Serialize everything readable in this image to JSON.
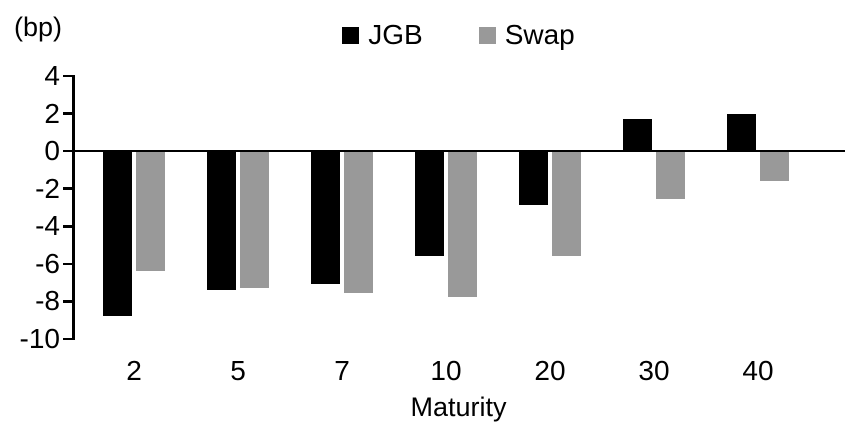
{
  "unit_label": "(bp)",
  "chart_data": {
    "type": "bar",
    "categories": [
      "2",
      "5",
      "7",
      "10",
      "20",
      "30",
      "40"
    ],
    "series": [
      {
        "name": "JGB",
        "color": "#000000",
        "values": [
          -8.7,
          -7.3,
          -7.0,
          -5.5,
          -2.8,
          1.7,
          2.0
        ]
      },
      {
        "name": "Swap",
        "color": "#999999",
        "values": [
          -6.3,
          -7.2,
          -7.5,
          -7.7,
          -5.5,
          -2.5,
          -1.5
        ]
      }
    ],
    "title": "",
    "xlabel": "Maturity",
    "ylabel": "(bp)",
    "ylim": [
      -10,
      4
    ],
    "yticks": [
      4,
      2,
      0,
      -2,
      -4,
      -6,
      -8,
      -10
    ],
    "grid": false,
    "legend_position": "top-center",
    "background": "#ffffff",
    "axis_color": "#000000"
  }
}
